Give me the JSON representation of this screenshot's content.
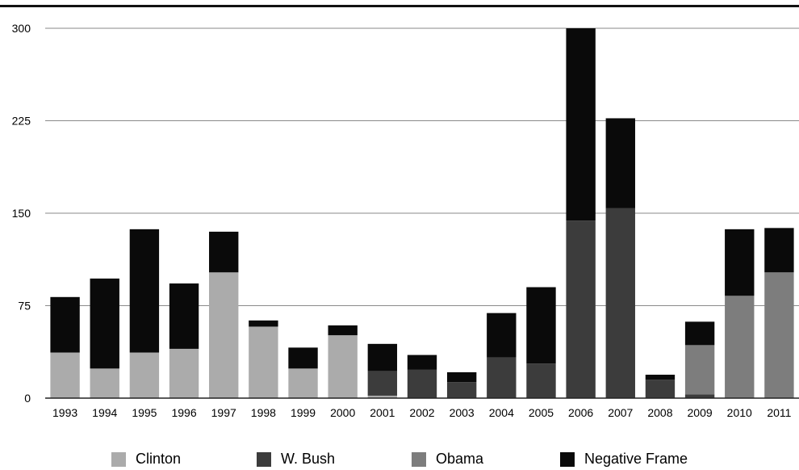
{
  "chart_data": {
    "type": "bar",
    "stacked": true,
    "title": "",
    "xlabel": "",
    "ylabel": "",
    "ylim": [
      0,
      300
    ],
    "yticks": [
      0,
      75,
      150,
      225,
      300
    ],
    "grid": true,
    "legend_position": "bottom",
    "categories": [
      "1993",
      "1994",
      "1995",
      "1996",
      "1997",
      "1998",
      "1999",
      "2000",
      "2001",
      "2002",
      "2003",
      "2004",
      "2005",
      "2006",
      "2007",
      "2008",
      "2009",
      "2010",
      "2011"
    ],
    "series": [
      {
        "name": "Clinton",
        "color": "#ababab",
        "values": [
          37,
          24,
          37,
          40,
          102,
          58,
          24,
          51,
          2,
          0,
          0,
          0,
          0,
          0,
          0,
          0,
          0,
          0,
          0
        ]
      },
      {
        "name": "W. Bush",
        "color": "#3c3c3c",
        "values": [
          0,
          0,
          0,
          0,
          0,
          0,
          0,
          0,
          20,
          23,
          13,
          33,
          28,
          144,
          154,
          15,
          3,
          0,
          0
        ]
      },
      {
        "name": "Obama",
        "color": "#7d7d7d",
        "values": [
          0,
          0,
          0,
          0,
          0,
          0,
          0,
          0,
          0,
          0,
          0,
          0,
          0,
          0,
          0,
          0,
          40,
          83,
          102
        ]
      },
      {
        "name": "Negative Frame",
        "color": "#0a0a0a",
        "values": [
          45,
          73,
          100,
          53,
          33,
          5,
          17,
          8,
          22,
          12,
          8,
          36,
          62,
          156,
          73,
          4,
          19,
          54,
          36
        ]
      }
    ]
  }
}
